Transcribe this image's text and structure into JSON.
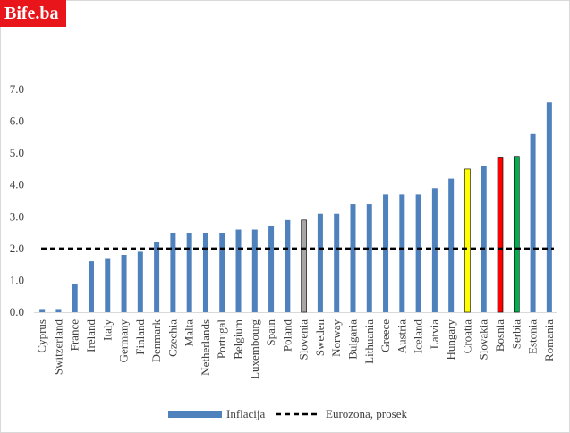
{
  "logo": {
    "text": "Bife.ba",
    "color": "#e8161b"
  },
  "chart_data": {
    "type": "bar",
    "categories": [
      "Cyprus",
      "Switzerland",
      "France",
      "Ireland",
      "Italy",
      "Germany",
      "Finland",
      "Denmark",
      "Czechia",
      "Malta",
      "Netherlands",
      "Portugal",
      "Belgium",
      "Luxembourg",
      "Spain",
      "Poland",
      "Slovenia",
      "Sweden",
      "Norway",
      "Bulgaria",
      "Lithuania",
      "Greece",
      "Austria",
      "Iceland",
      "Latvia",
      "Hungary",
      "Croatia",
      "Slovakia",
      "Bosnia",
      "Serbia",
      "Estonia",
      "Romania"
    ],
    "series": [
      {
        "name": "Inflacija",
        "color": "#4f81bd",
        "values": [
          0.1,
          0.1,
          0.9,
          1.6,
          1.7,
          1.8,
          1.9,
          2.2,
          2.5,
          2.5,
          2.5,
          2.5,
          2.6,
          2.6,
          2.7,
          2.9,
          2.9,
          3.1,
          3.1,
          3.4,
          3.4,
          3.7,
          3.7,
          3.7,
          3.9,
          4.2,
          4.5,
          4.6,
          4.85,
          4.9,
          5.6,
          6.6
        ]
      }
    ],
    "highlights": {
      "Slovenia": "#a6a6a6",
      "Croatia": "#ffff00",
      "Bosnia": "#ff0000",
      "Serbia": "#00b050"
    },
    "reference_line": {
      "name": "Eurozona, prosek",
      "value": 2.0,
      "color": "#000000",
      "style": "dashed"
    },
    "ylim": [
      0,
      7
    ],
    "yticks": [
      "0.0",
      "1.0",
      "2.0",
      "3.0",
      "4.0",
      "5.0",
      "6.0",
      "7.0"
    ],
    "grid": false,
    "legend": {
      "position": "bottom",
      "entries": [
        "Inflacija",
        "Eurozona, prosek"
      ]
    }
  }
}
